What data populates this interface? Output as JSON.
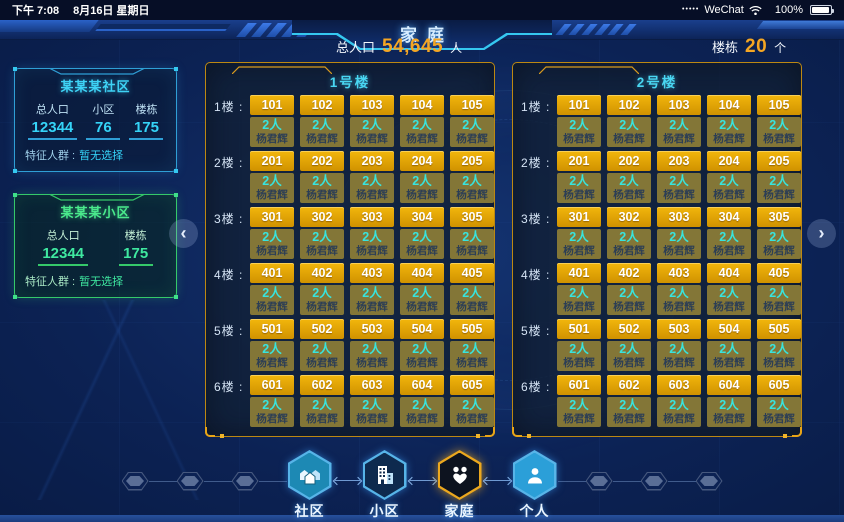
{
  "colors": {
    "accent_gold": "#f5a623",
    "room_gold": "#e8a800",
    "cyan": "#35d4f8",
    "green": "#3fe8a0",
    "panel_border": "#bc8812"
  },
  "status_bar": {
    "time": "下午 7:08",
    "date": "8月16日 星期日",
    "signal_dots": "•••••",
    "carrier": "WeChat",
    "battery_percent": "100%"
  },
  "header": {
    "title": "家庭",
    "population": {
      "label": "总人口",
      "value": "54,645",
      "unit": "人"
    },
    "buildings_stat": {
      "label": "楼栋",
      "value": "20",
      "unit": "个"
    }
  },
  "sidebar": {
    "cards": [
      {
        "title": "某某某社区",
        "theme": "cyan",
        "stats": [
          {
            "label": "总人口",
            "value": "12344"
          },
          {
            "label": "小区",
            "value": "76"
          },
          {
            "label": "楼栋",
            "value": "175"
          }
        ],
        "feature_label": "特征人群 :",
        "feature_value": "暂无选择"
      },
      {
        "title": "某某某小区",
        "theme": "green",
        "stats": [
          {
            "label": "总人口",
            "value": "12344"
          },
          {
            "label": "楼栋",
            "value": "175"
          }
        ],
        "feature_label": "特征人群 :",
        "feature_value": "暂无选择"
      }
    ]
  },
  "buildings": [
    {
      "name": "1号楼",
      "room_people": "2人",
      "room_resident": "杨君辉",
      "floors": [
        {
          "label": "1楼 :",
          "rooms": [
            "101",
            "102",
            "103",
            "104",
            "105"
          ]
        },
        {
          "label": "2楼 :",
          "rooms": [
            "201",
            "202",
            "203",
            "204",
            "205"
          ]
        },
        {
          "label": "3楼 :",
          "rooms": [
            "301",
            "302",
            "303",
            "304",
            "305"
          ]
        },
        {
          "label": "4楼 :",
          "rooms": [
            "401",
            "402",
            "403",
            "404",
            "405"
          ]
        },
        {
          "label": "5楼 :",
          "rooms": [
            "501",
            "502",
            "503",
            "504",
            "505"
          ]
        },
        {
          "label": "6楼 :",
          "rooms": [
            "601",
            "602",
            "603",
            "604",
            "605"
          ]
        }
      ]
    },
    {
      "name": "2号楼",
      "room_people": "2人",
      "room_resident": "杨君辉",
      "floors": [
        {
          "label": "1楼 :",
          "rooms": [
            "101",
            "102",
            "103",
            "104",
            "105"
          ]
        },
        {
          "label": "2楼 :",
          "rooms": [
            "201",
            "202",
            "203",
            "204",
            "205"
          ]
        },
        {
          "label": "3楼 :",
          "rooms": [
            "301",
            "302",
            "303",
            "304",
            "305"
          ]
        },
        {
          "label": "4楼 :",
          "rooms": [
            "401",
            "402",
            "403",
            "404",
            "405"
          ]
        },
        {
          "label": "5楼 :",
          "rooms": [
            "501",
            "502",
            "503",
            "504",
            "505"
          ]
        },
        {
          "label": "6楼 :",
          "rooms": [
            "601",
            "602",
            "603",
            "604",
            "605"
          ]
        }
      ]
    }
  ],
  "pagination": {
    "prev_icon": "‹",
    "next_icon": "›"
  },
  "nav": {
    "items": [
      {
        "id": "community",
        "label": "社区",
        "icon": "community-icon",
        "active": false
      },
      {
        "id": "neighborhood",
        "label": "小区",
        "icon": "neighborhood-icon",
        "active": false
      },
      {
        "id": "family",
        "label": "家庭",
        "icon": "family-icon",
        "active": true
      },
      {
        "id": "person",
        "label": "个人",
        "icon": "person-icon",
        "active": false
      }
    ]
  }
}
